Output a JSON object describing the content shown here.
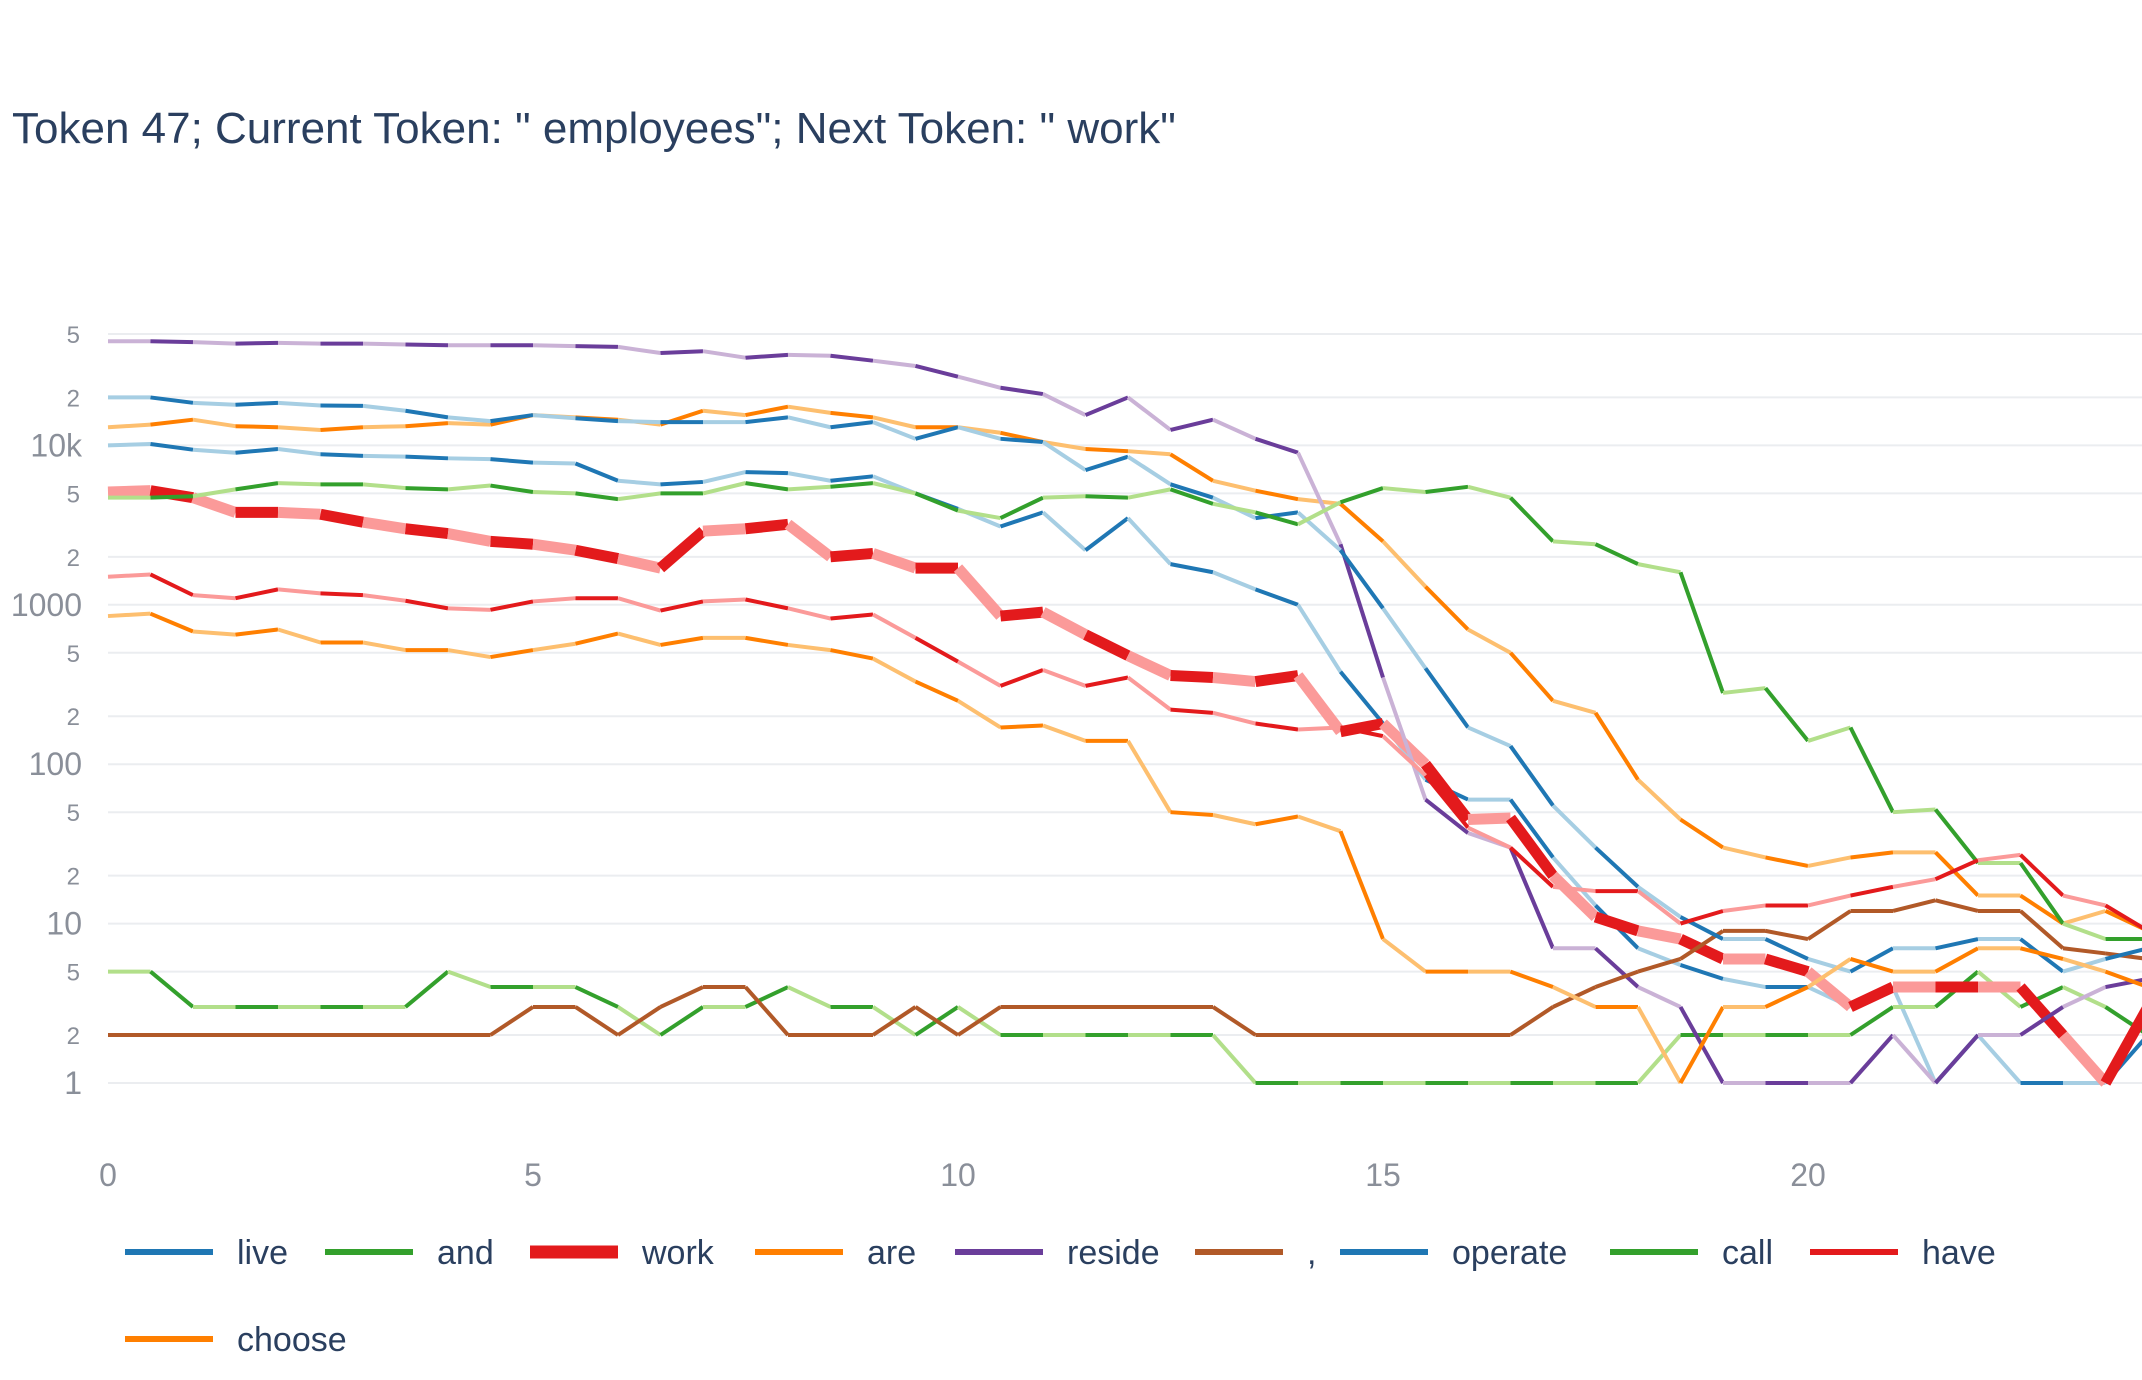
{
  "chart_data": {
    "type": "line",
    "title": "Token 47; Current Token: \" employees\"; Next Token: \" work\"",
    "xlabel": "",
    "ylabel": "",
    "y_scale": "log",
    "ylim": [
      1,
      50000
    ],
    "xlim": [
      0,
      24
    ],
    "grid": true,
    "legend_placement": "bottom",
    "x_ticks": [
      "0",
      "5",
      "10",
      "15",
      "20"
    ],
    "y_major_ticks": [
      {
        "value": 1,
        "label": "1"
      },
      {
        "value": 10,
        "label": "10"
      },
      {
        "value": 100,
        "label": "100"
      },
      {
        "value": 1000,
        "label": "1000"
      },
      {
        "value": 10000,
        "label": "10k"
      }
    ],
    "y_minor_ticks": [
      {
        "value": 2,
        "label": "2"
      },
      {
        "value": 5,
        "label": "5"
      },
      {
        "value": 20,
        "label": "2"
      },
      {
        "value": 50,
        "label": "5"
      },
      {
        "value": 200,
        "label": "2"
      },
      {
        "value": 500,
        "label": "5"
      },
      {
        "value": 2000,
        "label": "2"
      },
      {
        "value": 5000,
        "label": "5"
      },
      {
        "value": 20000,
        "label": "2"
      },
      {
        "value": 50000,
        "label": "5"
      }
    ],
    "x": [
      0,
      0.5,
      1,
      1.5,
      2,
      2.5,
      3,
      3.5,
      4,
      4.5,
      5,
      5.5,
      6,
      6.5,
      7,
      7.5,
      8,
      8.5,
      9,
      9.5,
      10,
      10.5,
      11,
      11.5,
      12,
      12.5,
      13,
      13.5,
      14,
      14.5,
      15,
      15.5,
      16,
      16.5,
      17,
      17.5,
      18,
      18.5,
      19,
      19.5,
      20,
      20.5,
      21,
      21.5,
      22,
      22.5,
      23,
      23.5,
      24
    ],
    "series": [
      {
        "name": "live",
        "color": "#1f77b4",
        "light": "#a6cee3",
        "width": 4,
        "values": [
          10000,
          10200,
          9400,
          9000,
          9500,
          8800,
          8600,
          8500,
          8300,
          8200,
          7800,
          7700,
          6000,
          5700,
          5900,
          6800,
          6700,
          6000,
          6400,
          5000,
          4000,
          3100,
          3800,
          2200,
          3500,
          1800,
          1600,
          1250,
          1000,
          380,
          180,
          80,
          60,
          60,
          26,
          13,
          7,
          5.5,
          4.5,
          4,
          4,
          3,
          4,
          1,
          2,
          1,
          1,
          1,
          2
        ]
      },
      {
        "name": "and",
        "color": "#33a02c",
        "light": "#b2df8a",
        "width": 4,
        "values": [
          5,
          5,
          3,
          3,
          3,
          3,
          3,
          3,
          5,
          4,
          4,
          4,
          3,
          2,
          3,
          3,
          4,
          3,
          3,
          2,
          3,
          2,
          2,
          2,
          2,
          2,
          2,
          1,
          1,
          1,
          1,
          1,
          1,
          1,
          1,
          1,
          1,
          2,
          2,
          2,
          2,
          2,
          3,
          3,
          5,
          3,
          4,
          3,
          2
        ]
      },
      {
        "name": "work",
        "color": "#e31a1c",
        "light": "#fb9a99",
        "width": 11,
        "values": [
          5100,
          5200,
          4700,
          3800,
          3800,
          3700,
          3300,
          3000,
          2800,
          2500,
          2400,
          2200,
          1950,
          1700,
          2900,
          3000,
          3200,
          2000,
          2100,
          1700,
          1700,
          850,
          900,
          650,
          480,
          360,
          350,
          330,
          360,
          160,
          180,
          100,
          45,
          46,
          20,
          11,
          9,
          8,
          6,
          6,
          5,
          3,
          4,
          4,
          4,
          4,
          2,
          1,
          3
        ]
      },
      {
        "name": "are",
        "color": "#ff7f00",
        "light": "#fdbf6f",
        "width": 4,
        "values": [
          13000,
          13500,
          14500,
          13200,
          13000,
          12500,
          13000,
          13200,
          13800,
          13500,
          15500,
          15000,
          14500,
          13500,
          16500,
          15500,
          17500,
          16000,
          15000,
          13000,
          13000,
          12000,
          10500,
          9500,
          9200,
          8800,
          6000,
          5200,
          4600,
          4300,
          2500,
          1300,
          700,
          500,
          250,
          210,
          80,
          45,
          30,
          26,
          23,
          26,
          28,
          28,
          15,
          15,
          10,
          12,
          9
        ]
      },
      {
        "name": "reside",
        "color": "#6a3d9a",
        "light": "#cab2d6",
        "width": 4,
        "values": [
          45000,
          45000,
          44500,
          43500,
          44000,
          43500,
          43500,
          43000,
          42500,
          42500,
          42500,
          42000,
          41500,
          38000,
          39000,
          35500,
          37000,
          36500,
          34000,
          31500,
          27000,
          23000,
          21000,
          15500,
          20000,
          12500,
          14500,
          11000,
          9000,
          2400,
          350,
          60,
          37,
          30,
          7,
          7,
          4,
          3,
          1,
          1,
          1,
          1,
          2,
          1,
          2,
          2,
          3,
          4,
          4.5
        ]
      },
      {
        "name": ",",
        "color": "#b15928",
        "light": "#b15928",
        "width": 4,
        "values": [
          2,
          2,
          2,
          2,
          2,
          2,
          2,
          2,
          2,
          2,
          3,
          3,
          2,
          3,
          4,
          4,
          2,
          2,
          2,
          3,
          2,
          3,
          3,
          3,
          3,
          3,
          3,
          2,
          2,
          2,
          2,
          2,
          2,
          2,
          3,
          4,
          5,
          6,
          9,
          9,
          8,
          12,
          12,
          14,
          12,
          12,
          7,
          6.5,
          6
        ]
      },
      {
        "name": "operate",
        "color": "#1f77b4",
        "light": "#a6cee3",
        "width": 4,
        "values": [
          20000,
          20000,
          18500,
          18000,
          18500,
          17800,
          17700,
          16500,
          15000,
          14200,
          15500,
          14800,
          14200,
          14000,
          14000,
          14000,
          15000,
          13000,
          14000,
          11000,
          13000,
          11000,
          10500,
          7000,
          8500,
          5700,
          4700,
          3500,
          3800,
          2200,
          950,
          400,
          170,
          130,
          55,
          30,
          17,
          11,
          8,
          8,
          6,
          5,
          7,
          7,
          8,
          8,
          5,
          6,
          7
        ]
      },
      {
        "name": "call",
        "color": "#33a02c",
        "light": "#b2df8a",
        "width": 4,
        "values": [
          4700,
          4700,
          4800,
          5300,
          5800,
          5700,
          5700,
          5400,
          5300,
          5600,
          5100,
          5000,
          4600,
          5000,
          5000,
          5800,
          5300,
          5500,
          5800,
          5000,
          3900,
          3500,
          4700,
          4800,
          4700,
          5300,
          4300,
          3800,
          3200,
          4400,
          5400,
          5100,
          5500,
          4700,
          2500,
          2400,
          1800,
          1600,
          280,
          300,
          140,
          170,
          50,
          52,
          24,
          24,
          10,
          8,
          8
        ]
      },
      {
        "name": "have",
        "color": "#e31a1c",
        "light": "#fb9a99",
        "width": 4,
        "values": [
          1500,
          1550,
          1150,
          1100,
          1250,
          1180,
          1150,
          1060,
          950,
          930,
          1050,
          1100,
          1100,
          920,
          1050,
          1080,
          950,
          820,
          870,
          620,
          440,
          310,
          390,
          310,
          350,
          220,
          210,
          180,
          165,
          170,
          150,
          85,
          40,
          30,
          17,
          16,
          16,
          10,
          12,
          13,
          13,
          15,
          17,
          19,
          25,
          27,
          15,
          13,
          9
        ]
      },
      {
        "name": "choose",
        "color": "#ff7f00",
        "light": "#fdbf6f",
        "width": 4,
        "values": [
          850,
          880,
          680,
          650,
          700,
          580,
          580,
          520,
          520,
          470,
          520,
          570,
          660,
          560,
          620,
          620,
          560,
          520,
          460,
          330,
          250,
          170,
          175,
          140,
          140,
          50,
          48,
          42,
          47,
          38,
          8,
          5,
          5,
          5,
          4,
          3,
          3,
          1,
          3,
          3,
          4,
          6,
          5,
          5,
          7,
          7,
          6,
          5,
          4
        ]
      }
    ]
  }
}
